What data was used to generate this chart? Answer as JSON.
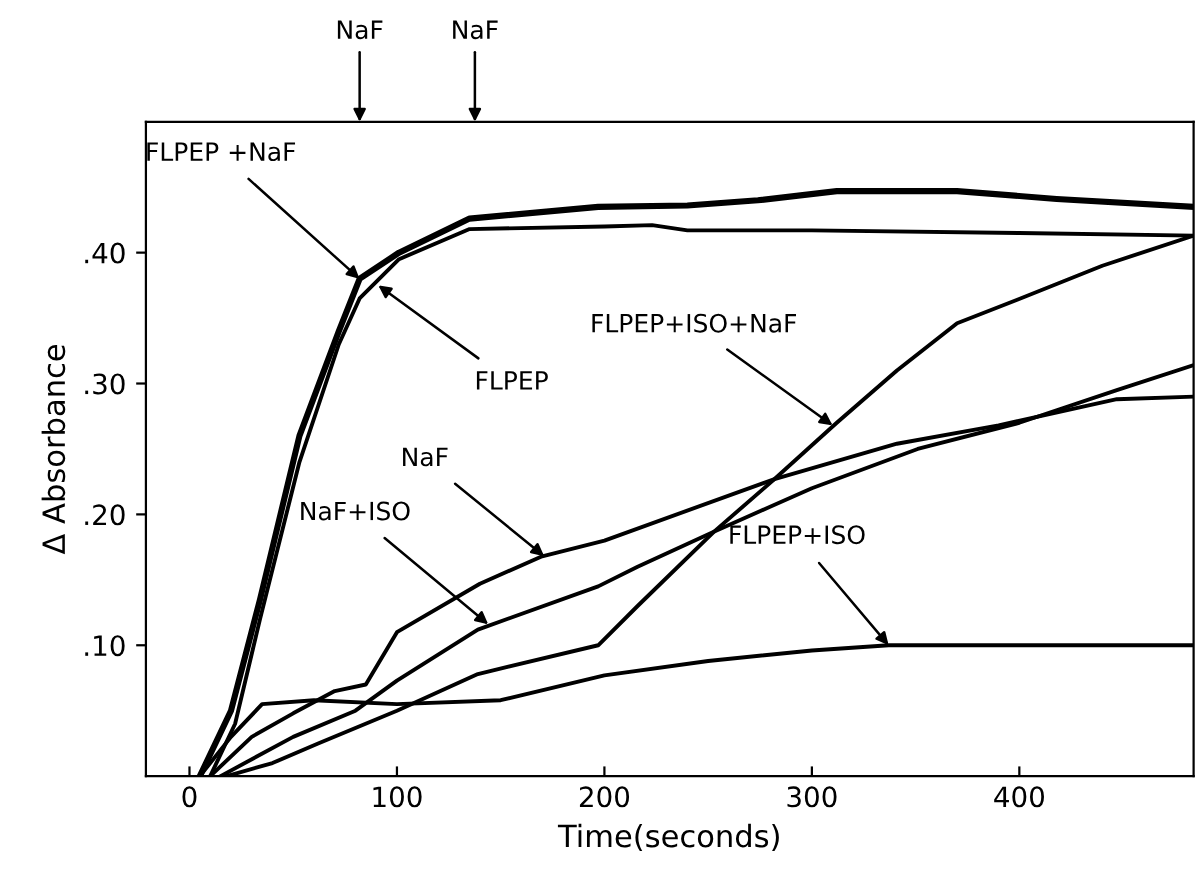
{
  "chart_data": {
    "type": "line",
    "xlabel": "Time(seconds)",
    "ylabel": "Δ Absorbance",
    "xlim": [
      -21,
      484
    ],
    "xticks": [
      0,
      100,
      200,
      300,
      400
    ],
    "ylim": [
      0,
      0.5
    ],
    "yticks": [
      {
        "value": 0.1,
        "label": ".10"
      },
      {
        "value": 0.2,
        "label": ".20"
      },
      {
        "value": 0.3,
        "label": ".30"
      },
      {
        "value": 0.4,
        "label": ".40"
      }
    ],
    "grid": false,
    "marker": "none",
    "line_style": "solid",
    "series": [
      {
        "color": "#000000",
        "x": [
          5,
          20,
          34,
          53,
          72,
          82,
          101,
          135,
          197,
          240,
          274,
          312,
          370,
          418,
          484
        ],
        "values": [
          0,
          0.05,
          0.135,
          0.26,
          0.34,
          0.38,
          0.4,
          0.426,
          0.435,
          0.436,
          0.44,
          0.447,
          0.447,
          0.441,
          0.435
        ]
      },
      {
        "color": "#000000",
        "x": [
          10,
          22,
          34,
          53,
          72,
          82,
          101,
          135,
          200,
          223,
          240,
          300,
          400,
          484
        ],
        "values": [
          0,
          0.04,
          0.12,
          0.24,
          0.33,
          0.365,
          0.395,
          0.418,
          0.42,
          0.421,
          0.417,
          0.417,
          0.415,
          0.413
        ]
      },
      {
        "color": "#000000",
        "x": [
          18,
          40,
          62,
          100,
          139,
          197,
          216,
          253,
          282,
          312,
          341,
          370,
          399,
          440,
          484
        ],
        "values": [
          0,
          0.01,
          0.025,
          0.05,
          0.078,
          0.1,
          0.13,
          0.187,
          0.227,
          0.27,
          0.31,
          0.346,
          0.364,
          0.39,
          0.413
        ]
      },
      {
        "color": "#000000",
        "x": [
          10,
          30,
          50,
          70,
          85,
          100,
          140,
          170,
          200,
          282,
          341,
          390,
          447,
          484
        ],
        "values": [
          0,
          0.03,
          0.048,
          0.065,
          0.07,
          0.11,
          0.147,
          0.168,
          0.18,
          0.227,
          0.254,
          0.268,
          0.288,
          0.29
        ]
      },
      {
        "color": "#000000",
        "x": [
          15,
          50,
          80,
          100,
          139,
          197,
          216,
          253,
          300,
          351,
          400,
          447,
          484
        ],
        "values": [
          0,
          0.03,
          0.05,
          0.073,
          0.112,
          0.145,
          0.16,
          0.187,
          0.22,
          0.25,
          0.27,
          0.295,
          0.314
        ]
      },
      {
        "color": "#000000",
        "x": [
          5,
          20,
          35,
          60,
          100,
          150,
          200,
          250,
          300,
          337,
          400,
          484
        ],
        "values": [
          0,
          0.03,
          0.055,
          0.058,
          0.055,
          0.058,
          0.077,
          0.088,
          0.096,
          0.1,
          0.1,
          0.1
        ]
      }
    ],
    "annotations": [
      {
        "text": "FLPEP +NaF",
        "x": 82,
        "y": 0.38
      },
      {
        "text": "FLPEP",
        "x": 91,
        "y": 0.375
      },
      {
        "text": "FLPEP+ISO+NaF",
        "x": 310,
        "y": 0.268
      },
      {
        "text": "NaF",
        "x": 171,
        "y": 0.168
      },
      {
        "text": "NaF+ISO",
        "x": 144,
        "y": 0.116
      },
      {
        "text": "FLPEP+ISO",
        "x": 337,
        "y": 0.1
      },
      "NaF",
      "NaF"
    ]
  }
}
